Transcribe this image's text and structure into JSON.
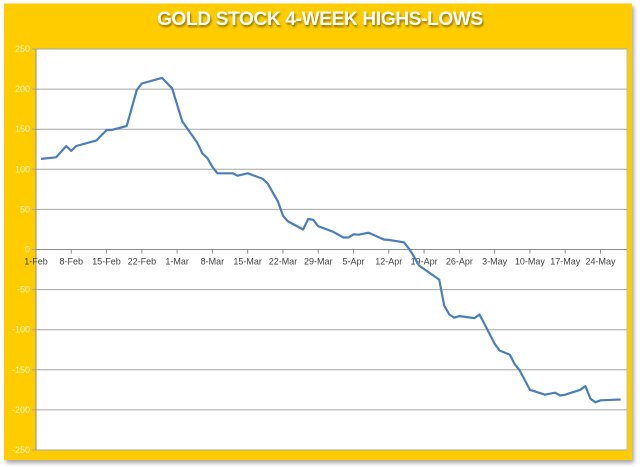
{
  "chart_data": {
    "type": "line",
    "title": "GOLD STOCK 4-WEEK HIGHS-LOWS",
    "xlabel": "",
    "ylabel": "",
    "ylim": [
      -250,
      250
    ],
    "yticks": [
      250,
      200,
      150,
      100,
      50,
      0,
      -50,
      -100,
      -150,
      -200,
      -250
    ],
    "xticks": [
      "1-Feb",
      "8-Feb",
      "15-Feb",
      "22-Feb",
      "1-Mar",
      "8-Mar",
      "15-Mar",
      "22-Mar",
      "29-Mar",
      "5-Apr",
      "12-Apr",
      "19-Apr",
      "26-Apr",
      "3-May",
      "10-May",
      "17-May",
      "24-May"
    ],
    "grid": true,
    "legend": "none",
    "colors": {
      "line": "#4A7EBB",
      "background": "#FFCC00",
      "plot": "#FFFFFF",
      "grid": "#A6A6A6"
    },
    "series": [
      {
        "points": [
          [
            "2-Feb",
            113
          ],
          [
            "5-Feb",
            115
          ],
          [
            "7-Feb",
            129
          ],
          [
            "8-Feb",
            123
          ],
          [
            "9-Feb",
            129
          ],
          [
            "13-Feb",
            136
          ],
          [
            "15-Feb",
            149
          ],
          [
            "16-Feb",
            149
          ],
          [
            "19-Feb",
            154
          ],
          [
            "21-Feb",
            199
          ],
          [
            "22-Feb",
            207
          ],
          [
            "26-Feb",
            214
          ],
          [
            "28-Feb",
            201
          ],
          [
            "2-Mar",
            160
          ],
          [
            "5-Mar",
            133
          ],
          [
            "6-Mar",
            120
          ],
          [
            "7-Mar",
            114
          ],
          [
            "8-Mar",
            103
          ],
          [
            "9-Mar",
            95
          ],
          [
            "12-Mar",
            95
          ],
          [
            "13-Mar",
            92
          ],
          [
            "15-Mar",
            95
          ],
          [
            "18-Mar",
            88
          ],
          [
            "19-Mar",
            82
          ],
          [
            "21-Mar",
            60
          ],
          [
            "22-Mar",
            42
          ],
          [
            "23-Mar",
            35
          ],
          [
            "26-Mar",
            25
          ],
          [
            "27-Mar",
            38
          ],
          [
            "28-Mar",
            37
          ],
          [
            "29-Mar",
            29
          ],
          [
            "1-Apr",
            22
          ],
          [
            "3-Apr",
            15
          ],
          [
            "4-Apr",
            15
          ],
          [
            "5-Apr",
            19
          ],
          [
            "6-Apr",
            18.5
          ],
          [
            "8-Apr",
            21
          ],
          [
            "11-Apr",
            12.5
          ],
          [
            "12-Apr",
            12
          ],
          [
            "15-Apr",
            9
          ],
          [
            "16-Apr",
            1
          ],
          [
            "17-Apr",
            -9
          ],
          [
            "18-Apr",
            -20
          ],
          [
            "22-Apr",
            -37.5
          ],
          [
            "23-Apr",
            -70
          ],
          [
            "24-Apr",
            -81
          ],
          [
            "25-Apr",
            -85
          ],
          [
            "26-Apr",
            -83
          ],
          [
            "29-Apr",
            -85.5
          ],
          [
            "30-Apr",
            -81
          ],
          [
            "1-May",
            -93
          ],
          [
            "3-May",
            -117.5
          ],
          [
            "4-May",
            -126
          ],
          [
            "6-May",
            -131
          ],
          [
            "7-May",
            -143
          ],
          [
            "8-May",
            -151
          ],
          [
            "10-May",
            -175
          ],
          [
            "13-May",
            -181
          ],
          [
            "15-May",
            -178.5
          ],
          [
            "16-May",
            -182
          ],
          [
            "17-May",
            -181
          ],
          [
            "20-May",
            -175
          ],
          [
            "21-May",
            -170.5
          ],
          [
            "22-May",
            -186
          ],
          [
            "23-May",
            -190.5
          ],
          [
            "24-May",
            -188
          ],
          [
            "28-May",
            -187
          ]
        ]
      }
    ]
  }
}
